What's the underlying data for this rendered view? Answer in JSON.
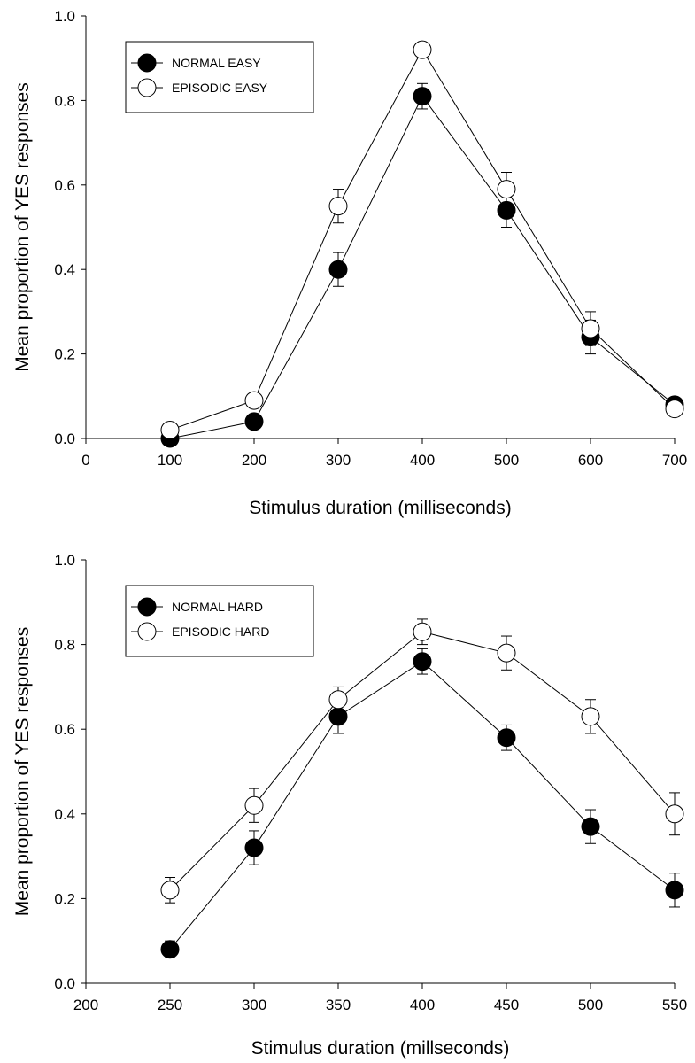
{
  "chart_data": [
    {
      "type": "line",
      "title": "",
      "xlabel": "Stimulus duration (milliseconds)",
      "ylabel": "Mean proportion of YES responses",
      "xlim": [
        0,
        700
      ],
      "ylim": [
        0,
        1.0
      ],
      "xticks": [
        0,
        100,
        200,
        300,
        400,
        500,
        600,
        700
      ],
      "yticks": [
        0.0,
        0.2,
        0.4,
        0.6,
        0.8,
        1.0
      ],
      "grid": false,
      "legend_position": "top-left",
      "x": [
        100,
        200,
        300,
        400,
        500,
        600,
        700
      ],
      "series": [
        {
          "name": "NORMAL EASY",
          "marker": "filled-circle",
          "color": "#000000",
          "values": [
            0.0,
            0.04,
            0.4,
            0.81,
            0.54,
            0.24,
            0.08
          ],
          "error": [
            0.0,
            0.0,
            0.04,
            0.03,
            0.04,
            0.04,
            0.0
          ]
        },
        {
          "name": "EPISODIC EASY",
          "marker": "open-circle",
          "color": "#000000",
          "values": [
            0.02,
            0.09,
            0.55,
            0.92,
            0.59,
            0.26,
            0.07
          ],
          "error": [
            0.0,
            0.0,
            0.04,
            0.0,
            0.04,
            0.04,
            0.0
          ]
        }
      ]
    },
    {
      "type": "line",
      "title": "",
      "xlabel": "Stimulus duration (millseconds)",
      "ylabel": "Mean proportion of YES responses",
      "xlim": [
        200,
        550
      ],
      "ylim": [
        0,
        1.0
      ],
      "xticks": [
        200,
        250,
        300,
        350,
        400,
        450,
        500,
        550
      ],
      "yticks": [
        0.0,
        0.2,
        0.4,
        0.6,
        0.8,
        1.0
      ],
      "grid": false,
      "legend_position": "top-left",
      "x": [
        250,
        300,
        350,
        400,
        450,
        500,
        550
      ],
      "series": [
        {
          "name": "NORMAL HARD",
          "marker": "filled-circle",
          "color": "#000000",
          "values": [
            0.08,
            0.32,
            0.63,
            0.76,
            0.58,
            0.37,
            0.22
          ],
          "error": [
            0.02,
            0.04,
            0.04,
            0.03,
            0.03,
            0.04,
            0.04
          ]
        },
        {
          "name": "EPISODIC HARD",
          "marker": "open-circle",
          "color": "#000000",
          "values": [
            0.22,
            0.42,
            0.67,
            0.83,
            0.78,
            0.63,
            0.4
          ],
          "error": [
            0.03,
            0.04,
            0.03,
            0.03,
            0.04,
            0.04,
            0.05
          ]
        }
      ]
    }
  ]
}
